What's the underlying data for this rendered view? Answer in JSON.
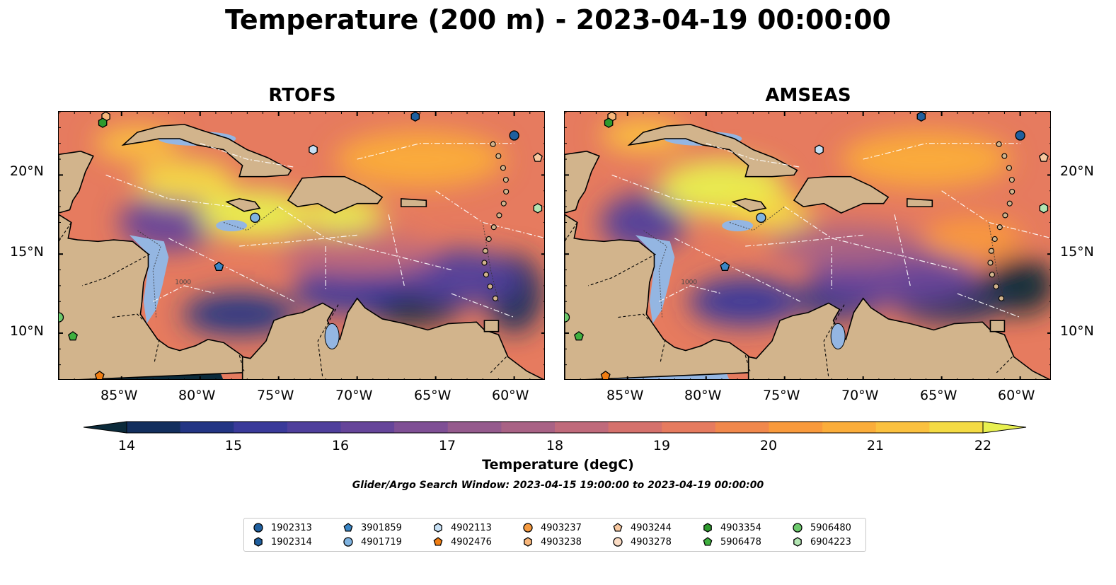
{
  "title": "Temperature (200 m) - 2023-04-19 00:00:00",
  "panels": [
    {
      "title": "RTOFS"
    },
    {
      "title": "AMSEAS"
    }
  ],
  "axes": {
    "lon_ticks": [
      "85°W",
      "80°W",
      "75°W",
      "70°W",
      "65°W",
      "60°W"
    ],
    "lat_ticks": [
      "20°N",
      "15°N",
      "10°N"
    ],
    "lon_range": [
      -89,
      -58
    ],
    "lat_range": [
      7,
      24
    ]
  },
  "colorbar": {
    "label": "Temperature (degC)",
    "ticks": [
      "14",
      "15",
      "16",
      "17",
      "18",
      "19",
      "20",
      "21",
      "22"
    ],
    "range": [
      14,
      22
    ],
    "extend": "both",
    "colors": [
      "#0b2a3a",
      "#132f5e",
      "#233584",
      "#3a3a9a",
      "#4f3f9c",
      "#66459a",
      "#7f4f95",
      "#955a8d",
      "#a96285",
      "#c06a7b",
      "#d5716c",
      "#e67b5f",
      "#f1884c",
      "#f99a3c",
      "#fbad3a",
      "#fbc13f",
      "#f4db44",
      "#e8f050"
    ]
  },
  "caption": "Glider/Argo Search Window: 2023-04-15 19:00:00 to 2023-04-19 00:00:00",
  "contour_label": "1000",
  "legend": [
    {
      "id": "1902313",
      "marker": "circle",
      "color": "#1f5f9e"
    },
    {
      "id": "1902314",
      "marker": "hexagon",
      "color": "#1f5f9e"
    },
    {
      "id": "3901859",
      "marker": "pentagon",
      "color": "#3a86c6"
    },
    {
      "id": "4901719",
      "marker": "circle",
      "color": "#7fb3e0"
    },
    {
      "id": "4902113",
      "marker": "hexagon",
      "color": "#c6e0f5"
    },
    {
      "id": "4902476",
      "marker": "pentagon",
      "color": "#f07d12"
    },
    {
      "id": "4903237",
      "marker": "circle",
      "color": "#f59a40"
    },
    {
      "id": "4903238",
      "marker": "hexagon",
      "color": "#f8b67a"
    },
    {
      "id": "4903244",
      "marker": "pentagon",
      "color": "#f8c8a0"
    },
    {
      "id": "4903278",
      "marker": "circle",
      "color": "#fbdcc4"
    },
    {
      "id": "4903354",
      "marker": "hexagon",
      "color": "#2e9a2e"
    },
    {
      "id": "5906478",
      "marker": "pentagon",
      "color": "#3fb03f"
    },
    {
      "id": "5906480",
      "marker": "circle",
      "color": "#6cc96c"
    },
    {
      "id": "6904223",
      "marker": "hexagon",
      "color": "#b3e6b3"
    }
  ]
}
